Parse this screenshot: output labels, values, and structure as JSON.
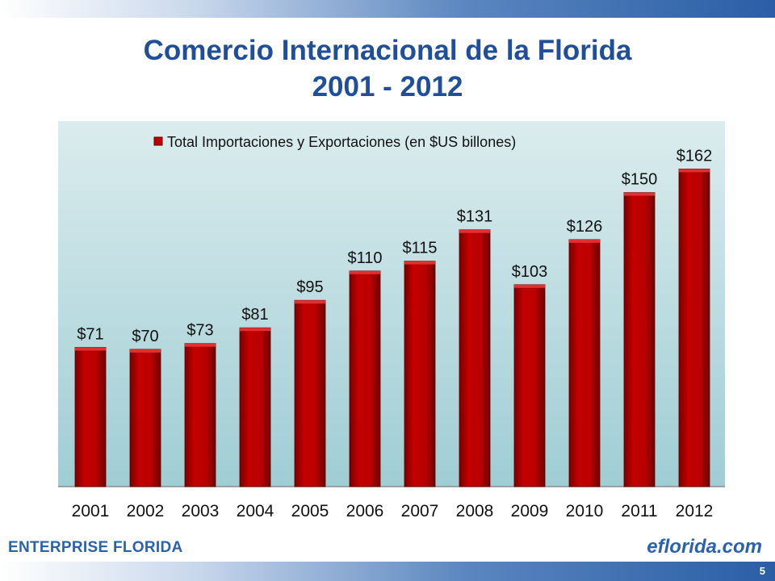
{
  "slide": {
    "title_line1": "Comercio Internacional  de la Florida",
    "title_line2": "2001 - 2012",
    "footer_brand": "ENTERPRISE FLORIDA",
    "footer_site": "eflorida.com",
    "page_number": "5"
  },
  "colors": {
    "title": "#1f4e9a",
    "bar": "#b00000",
    "plot_background": "#a9d2d8",
    "brand_blue": "#2b62ad"
  },
  "chart_data": {
    "type": "bar",
    "categories": [
      "2001",
      "2002",
      "2003",
      "2004",
      "2005",
      "2006",
      "2007",
      "2008",
      "2009",
      "2010",
      "2011",
      "2012"
    ],
    "series": [
      {
        "name": "Total Importaciones y Exportaciones (en $US billones)",
        "values": [
          71,
          70,
          73,
          81,
          95,
          110,
          115,
          131,
          103,
          126,
          150,
          162
        ],
        "labels": [
          "$71",
          "$70",
          "$73",
          "$81",
          "$95",
          "$110",
          "$115",
          "$131",
          "$103",
          "$126",
          "$150",
          "$162"
        ]
      }
    ],
    "ylim": [
      0,
      170
    ],
    "grid": false,
    "legend_position": "top"
  }
}
